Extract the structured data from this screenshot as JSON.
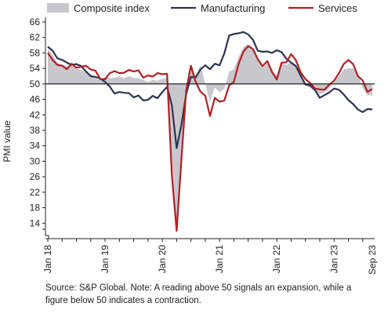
{
  "chart_data": {
    "type": "line",
    "ylabel": "PMI value",
    "ylim": [
      10,
      66
    ],
    "yticks": [
      14,
      18,
      22,
      26,
      30,
      34,
      38,
      42,
      46,
      50,
      54,
      58,
      62,
      66
    ],
    "reference_line": 50,
    "x_start": "2018-01",
    "xtick_labels": [
      {
        "label": "Jan 18",
        "index": 0
      },
      {
        "label": "Jan 19",
        "index": 12
      },
      {
        "label": "Jan 20",
        "index": 24
      },
      {
        "label": "Jan 21",
        "index": 36
      },
      {
        "label": "Jan 22",
        "index": 48
      },
      {
        "label": "Jan 23",
        "index": 60
      },
      {
        "label": "Sep 23",
        "index": 68
      }
    ],
    "legend_position": "top",
    "series": [
      {
        "name": "Composite index",
        "style": "area",
        "color": "#c8c8cc",
        "values": [
          59.0,
          57.5,
          55.5,
          55.0,
          54.5,
          54.8,
          54.0,
          53.5,
          53.0,
          52.5,
          51.5,
          51.0,
          51.8,
          51.5,
          51.6,
          52.0,
          51.5,
          52.0,
          51.5,
          51.5,
          51.0,
          50.5,
          51.0,
          50.8,
          51.3,
          51.6,
          29.7,
          13.6,
          31.9,
          48.5,
          54.9,
          51.9,
          54.8,
          50.0,
          45.3,
          49.1,
          47.8,
          48.8,
          53.2,
          53.8,
          56.9,
          59.5,
          60.2,
          59.0,
          56.2,
          54.2,
          55.4,
          53.3,
          52.3,
          55.5,
          54.9,
          55.8,
          54.8,
          53.0,
          49.9,
          48.9,
          48.1,
          47.3,
          47.8,
          48.8,
          50.3,
          52.0,
          53.7,
          54.1,
          54.0,
          52.8,
          48.9,
          47.0,
          47.1
        ]
      },
      {
        "name": "Manufacturing",
        "style": "line",
        "color": "#2b3452",
        "values": [
          59.6,
          58.6,
          56.6,
          56.2,
          55.5,
          54.9,
          55.1,
          54.6,
          53.2,
          52.0,
          51.8,
          51.4,
          50.5,
          49.3,
          47.5,
          47.9,
          47.7,
          47.6,
          46.5,
          47.0,
          45.7,
          45.9,
          46.9,
          46.3,
          47.9,
          49.2,
          44.5,
          33.4,
          39.4,
          47.4,
          51.8,
          51.7,
          53.7,
          54.8,
          53.8,
          55.2,
          54.8,
          57.9,
          62.5,
          62.9,
          63.1,
          63.4,
          62.8,
          61.4,
          58.6,
          58.3,
          58.4,
          58.0,
          58.7,
          58.2,
          56.5,
          55.5,
          54.6,
          52.1,
          49.8,
          49.6,
          48.4,
          46.4,
          47.1,
          47.8,
          48.8,
          48.5,
          47.3,
          45.8,
          44.8,
          43.4,
          42.7,
          43.5,
          43.4
        ]
      },
      {
        "name": "Services",
        "style": "line",
        "color": "#b22025",
        "values": [
          58.0,
          56.2,
          54.9,
          54.7,
          53.8,
          55.2,
          54.2,
          54.4,
          54.7,
          53.7,
          53.4,
          51.2,
          51.2,
          52.8,
          53.3,
          52.8,
          52.9,
          53.6,
          53.2,
          53.5,
          51.6,
          52.2,
          51.9,
          52.8,
          52.5,
          52.6,
          26.4,
          12.0,
          30.5,
          48.3,
          54.7,
          50.5,
          48.0,
          46.9,
          41.7,
          46.4,
          45.4,
          45.7,
          49.6,
          50.5,
          55.2,
          58.3,
          59.8,
          59.0,
          56.4,
          54.6,
          55.9,
          53.1,
          51.1,
          55.5,
          55.6,
          57.7,
          56.1,
          53.0,
          51.2,
          50.2,
          48.8,
          48.6,
          48.5,
          49.8,
          50.8,
          52.7,
          55.1,
          56.2,
          55.1,
          52.0,
          50.9,
          47.9,
          48.7
        ]
      }
    ],
    "source_note": "Source: S&P Global. Note: A reading above 50 signals an expansion, while a figure below 50 indicates a contraction."
  },
  "colors": {
    "axis": "#222222",
    "zero_line": "#222222"
  }
}
